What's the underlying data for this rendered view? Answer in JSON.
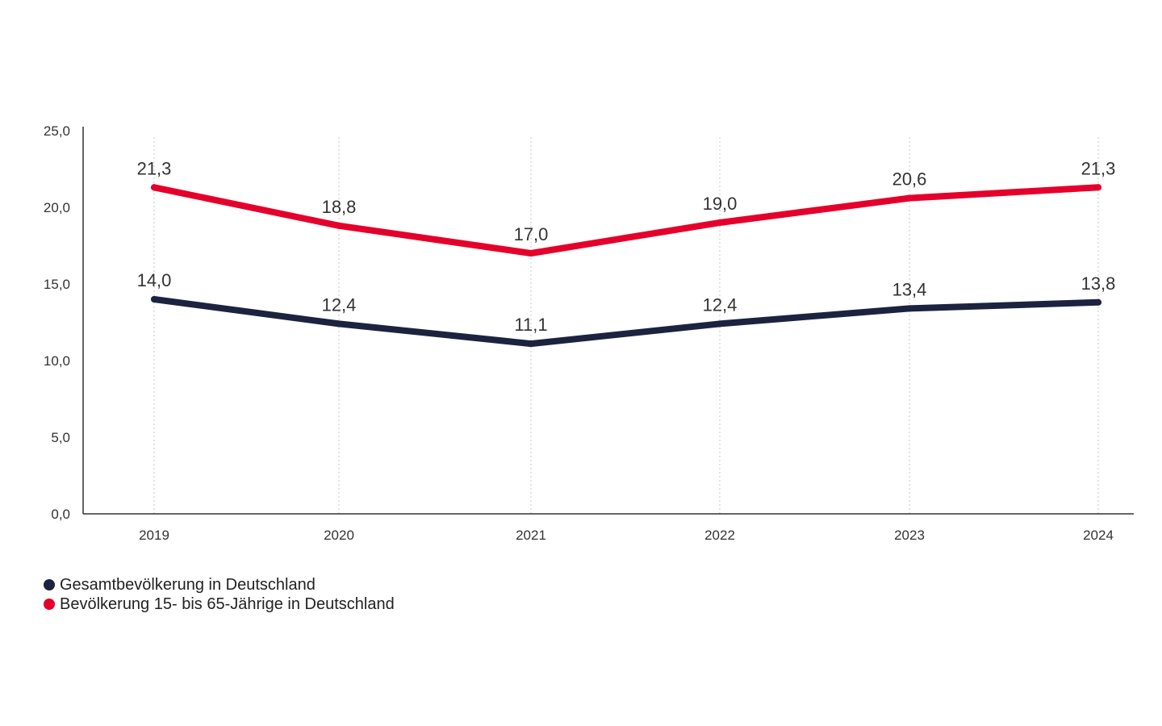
{
  "chart_data": {
    "type": "line",
    "categories": [
      "2019",
      "2020",
      "2021",
      "2022",
      "2023",
      "2024"
    ],
    "y_ticks": [
      "0,0",
      "5,0",
      "10,0",
      "15,0",
      "20,0",
      "25,0"
    ],
    "ylim": [
      0,
      25
    ],
    "grid": "vertical dotted",
    "legend_position": "bottom-left",
    "series": [
      {
        "name": "Gesamtbevölkerung in Deutschland",
        "color": "#1c2340",
        "values": [
          14.0,
          12.4,
          11.1,
          12.4,
          13.4,
          13.8
        ],
        "labels": [
          "14,0",
          "12,4",
          "11,1",
          "12,4",
          "13,4",
          "13,8"
        ]
      },
      {
        "name": "Bevölkerung 15- bis 65-Jährige in Deutschland",
        "color": "#e4002b",
        "values": [
          21.3,
          18.8,
          17.0,
          19.0,
          20.6,
          21.3
        ],
        "labels": [
          "21,3",
          "18,8",
          "17,0",
          "19,0",
          "20,6",
          "21,3"
        ]
      }
    ]
  }
}
